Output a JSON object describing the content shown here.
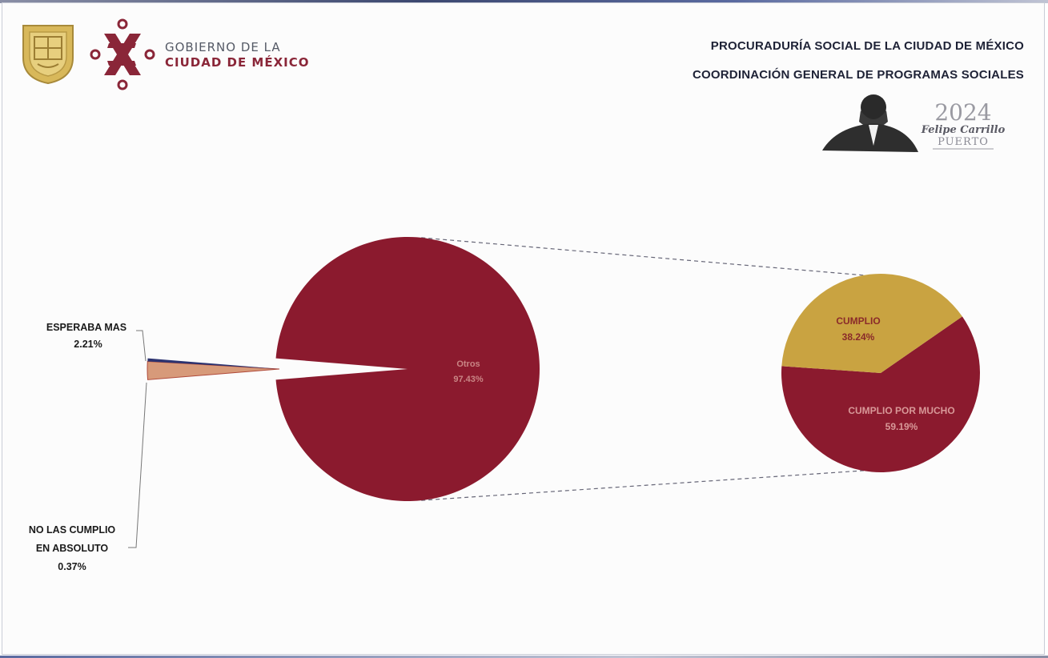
{
  "header": {
    "gov_line1": "GOBIERNO DE LA",
    "gov_line2": "CIUDAD DE MÉXICO",
    "title_line1": "PROCURADURÍA SOCIAL DE LA CIUDAD DE MÉXICO",
    "title_line2": "COORDINACIÓN GENERAL DE PROGRAMAS SOCIALES",
    "badge_year": "2024",
    "badge_name": "Felipe Carrillo",
    "badge_surname": "PUERTO"
  },
  "colors": {
    "maroon": "#8b1a2e",
    "gold": "#c9a341",
    "dark_maroon": "#6e1224"
  },
  "chart_data": {
    "type": "pie",
    "subtype": "pie-of-pie",
    "title": "",
    "primary": [
      {
        "label": "ESPERABA MAS",
        "value": 2.21,
        "display": "2.21%"
      },
      {
        "label": "NO LAS CUMPLIO EN ABSOLUTO",
        "display": "0.37%",
        "value": 0.37
      },
      {
        "label": "Otros",
        "value": 97.43,
        "display": "97.43%"
      }
    ],
    "secondary": [
      {
        "label": "CUMPLIO",
        "value": 38.24,
        "display": "38.24%"
      },
      {
        "label": "CUMPLIO POR MUCHO",
        "value": 59.19,
        "display": "59.19%"
      }
    ]
  }
}
